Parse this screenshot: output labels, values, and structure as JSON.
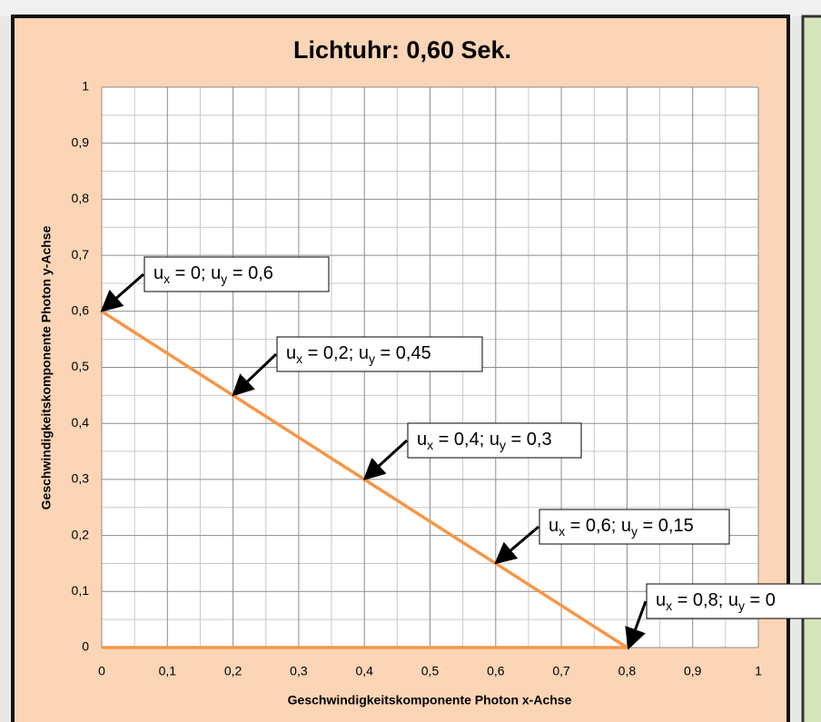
{
  "chart_data": {
    "type": "line",
    "title": "Lichtuhr: 0,60 Sek.",
    "x_label": "Geschwindigkeitskomponente  Photon x-Achse",
    "y_label": "Geschwindigkeitskomponente  Photon y-Achse",
    "series": [
      {
        "color": "#f79646",
        "x": [
          0,
          0.2,
          0.4,
          0.6,
          0.8
        ],
        "values": [
          0.6,
          0.45,
          0.3,
          0.15,
          0
        ]
      },
      {
        "color": "#f79646",
        "x": [
          0,
          0.8
        ],
        "values": [
          0,
          0
        ]
      }
    ],
    "xlim": [
      0,
      1
    ],
    "ylim": [
      0,
      1
    ],
    "xticks": [
      0,
      {
        "value": 0.1,
        "label": "0,1"
      },
      {
        "value": 0.2,
        "label": "0,2"
      },
      {
        "value": 0.3,
        "label": "0,3"
      },
      {
        "value": 0.4,
        "label": "0,4"
      },
      {
        "value": 0.5,
        "label": "0,5"
      },
      {
        "value": 0.6,
        "label": "0,6"
      },
      {
        "value": 0.7,
        "label": "0,7"
      },
      {
        "value": 0.8,
        "label": "0,8"
      },
      {
        "value": 0.9,
        "label": "0,9"
      },
      1
    ],
    "yticks": [
      0,
      {
        "value": 0.1,
        "label": "0,1"
      },
      {
        "value": 0.2,
        "label": "0,2"
      },
      {
        "value": 0.3,
        "label": "0,3"
      },
      {
        "value": 0.4,
        "label": "0,4"
      },
      {
        "value": 0.5,
        "label": "0,5"
      },
      {
        "value": 0.6,
        "label": "0,6"
      },
      {
        "value": 0.7,
        "label": "0,7"
      },
      {
        "value": 0.8,
        "label": "0,8"
      },
      {
        "value": 0.9,
        "label": "0,9"
      },
      1
    ],
    "grid": true,
    "annotations": [
      [
        "u",
        "x",
        " = 0; ",
        "u",
        "y",
        " = 0,6"
      ],
      [
        "u",
        "x",
        " = 0,2; ",
        "u",
        "y",
        " = 0,45"
      ],
      [
        "u",
        "x",
        " = 0,4; ",
        "u",
        "y",
        " = 0,3"
      ],
      [
        "u",
        "x",
        " = 0,6; ",
        "u",
        "y",
        " = 0,15"
      ],
      [
        "u",
        "x",
        " = 0,8; ",
        "u",
        "y",
        " = 0"
      ]
    ]
  }
}
